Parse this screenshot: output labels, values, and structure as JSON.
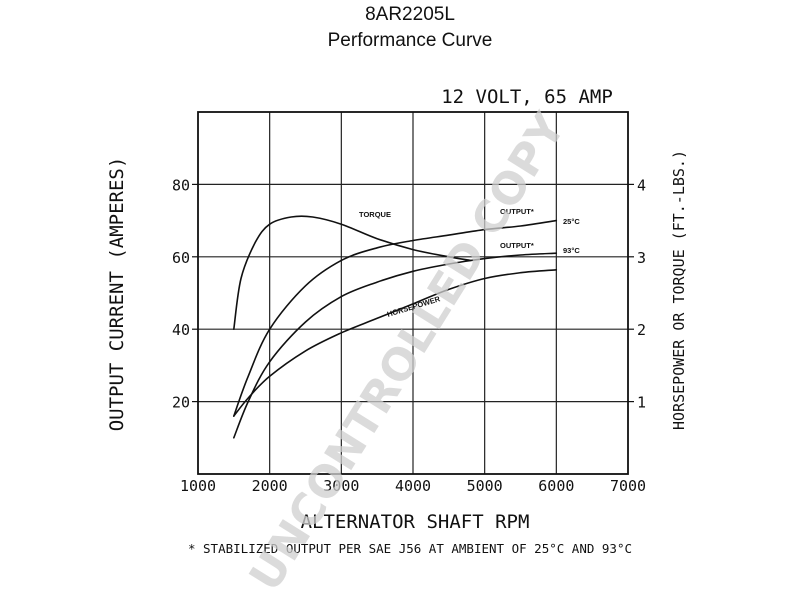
{
  "header": {
    "model": "8AR2205L",
    "subtitle": "Performance Curve"
  },
  "watermark": {
    "text": "UNCONTROLLED COPY",
    "color": "#cfcfcf"
  },
  "chart_data": {
    "type": "line",
    "title": "12 VOLT, 65 AMP",
    "xlabel": "ALTERNATOR SHAFT RPM",
    "ylabel": "OUTPUT CURRENT (AMPERES)",
    "y2label": "HORSEPOWER OR TORQUE (FT.-LBS.)",
    "footnote": "* STABILIZED OUTPUT PER SAE J56 AT AMBIENT OF 25°C AND 93°C",
    "xlim": [
      1000,
      7000
    ],
    "ylim": [
      0,
      100
    ],
    "y2lim": [
      0,
      5
    ],
    "x_ticks": [
      1000,
      2000,
      3000,
      4000,
      5000,
      6000,
      7000
    ],
    "y_ticks": [
      20,
      40,
      60,
      80
    ],
    "y2_ticks": [
      1,
      2,
      3,
      4
    ],
    "grid": true,
    "series": [
      {
        "name": "OUTPUT*",
        "annotation": "25°C",
        "axis": "left",
        "x": [
          1500,
          1700,
          2000,
          2500,
          3000,
          3500,
          4000,
          4500,
          5000,
          5500,
          6000
        ],
        "y": [
          16,
          27,
          40,
          52,
          59,
          62.5,
          64.5,
          66,
          67.5,
          68.5,
          70
        ]
      },
      {
        "name": "OUTPUT*",
        "annotation": "93°C",
        "axis": "left",
        "x": [
          1500,
          1700,
          2000,
          2500,
          3000,
          3500,
          4000,
          4500,
          5000,
          5500,
          6000
        ],
        "y": [
          10,
          20,
          31,
          42,
          49,
          53,
          56,
          58,
          59.5,
          60.5,
          61
        ]
      },
      {
        "name": "TORQUE",
        "axis": "right",
        "x": [
          1500,
          1600,
          1800,
          2000,
          2300,
          2600,
          3000,
          3500,
          4000,
          4500,
          4800
        ],
        "y": [
          2,
          2.7,
          3.2,
          3.45,
          3.55,
          3.55,
          3.45,
          3.25,
          3.1,
          3.0,
          2.95
        ]
      },
      {
        "name": "HORSEPOWER",
        "axis": "right",
        "x": [
          1500,
          1700,
          2000,
          2500,
          3000,
          3500,
          4000,
          4500,
          5000,
          5500,
          6000
        ],
        "y": [
          0.8,
          1.05,
          1.35,
          1.7,
          1.95,
          2.15,
          2.35,
          2.55,
          2.7,
          2.78,
          2.82
        ]
      }
    ]
  }
}
